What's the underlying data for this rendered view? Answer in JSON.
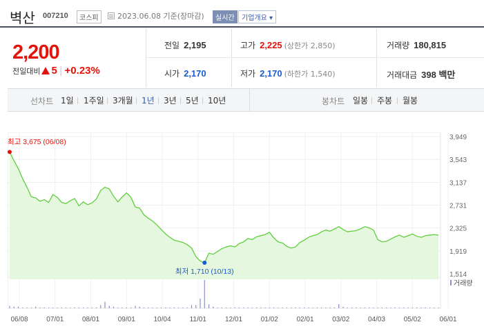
{
  "header": {
    "stock_name": "벽산",
    "stock_code": "007210",
    "market": "코스피",
    "date_text": "2023.06.08 기준(장마감)",
    "realtime_label": "실시간",
    "company_info_label": "기업개요 ▾"
  },
  "quote": {
    "current_price": "2,200",
    "change_label": "전일대비",
    "change_value": "5",
    "change_percent": "+0.23%",
    "prev_close_label": "전일",
    "prev_close": "2,195",
    "high_label": "고가",
    "high": "2,225",
    "upper_limit": "(상한가 2,850)",
    "volume_label": "거래량",
    "volume": "180,815",
    "open_label": "시가",
    "open": "2,170",
    "low_label": "저가",
    "low": "2,170",
    "lower_limit": "(하한가 1,540)",
    "amount_label": "거래대금",
    "amount": "398 백만"
  },
  "tabs": {
    "line_label": "선차트",
    "line_periods": [
      "1일",
      "1주일",
      "3개월",
      "1년",
      "3년",
      "5년",
      "10년"
    ],
    "line_selected": "1년",
    "candle_label": "봉차트",
    "candle_periods": [
      "일봉",
      "주봉",
      "월봉"
    ]
  },
  "chart_data": {
    "type": "area",
    "y_ticks": [
      "3,949",
      "3,543",
      "3,137",
      "2,731",
      "2,325",
      "1,919",
      "1,514"
    ],
    "ylim": [
      1514,
      3949
    ],
    "x_ticks": [
      "06/08",
      "07/01",
      "08/01",
      "09/01",
      "10/04",
      "11/01",
      "12/01",
      "01/02",
      "02/01",
      "03/02",
      "04/03",
      "05/02",
      "06/01"
    ],
    "high_annotation": "최고 3,675 (06/08)",
    "low_annotation": "최저 1,710 (10/13)",
    "volume_legend": "거래량",
    "colors": {
      "line": "#5fcf3c",
      "fill": "#e6f7df",
      "high": "#e3120b",
      "low": "#1a5bd0",
      "volume": "#8c8fc6"
    },
    "x_positions": [
      0,
      1,
      2,
      3,
      4,
      5,
      6,
      7,
      8,
      9,
      10,
      11,
      12,
      13,
      14,
      15,
      16,
      17,
      18,
      19,
      20,
      21,
      22,
      23,
      24,
      25,
      26,
      27,
      28,
      29,
      30,
      31,
      32,
      33,
      34,
      35,
      36,
      37,
      38,
      39,
      40,
      41,
      42,
      43,
      44,
      45,
      46,
      47,
      48,
      49,
      50,
      51,
      52,
      53,
      54,
      55,
      56,
      57,
      58,
      59,
      60,
      61,
      62,
      63,
      64,
      65,
      66,
      67,
      68,
      69,
      70,
      71,
      72,
      73,
      74,
      75,
      76,
      77,
      78,
      79,
      80,
      81,
      82,
      83,
      84,
      85,
      86,
      87,
      88,
      89,
      90,
      91,
      92,
      93,
      94,
      95,
      96,
      97,
      98,
      99
    ],
    "values": [
      3675,
      3520,
      3380,
      3200,
      3050,
      2880,
      2860,
      2800,
      2830,
      2780,
      2920,
      2870,
      2780,
      2760,
      2810,
      2850,
      2720,
      2790,
      2740,
      2770,
      2840,
      2990,
      3050,
      3020,
      2890,
      2790,
      2880,
      2950,
      2870,
      2700,
      2680,
      2560,
      2500,
      2450,
      2380,
      2300,
      2220,
      2160,
      2110,
      2090,
      2070,
      2030,
      1970,
      1820,
      1740,
      1710,
      1880,
      1860,
      1910,
      1960,
      1990,
      2010,
      1990,
      2050,
      2080,
      2140,
      2120,
      2170,
      2190,
      2210,
      2250,
      2150,
      2080,
      2060,
      2000,
      1970,
      1990,
      2070,
      2110,
      2160,
      2190,
      2210,
      2260,
      2290,
      2270,
      2310,
      2350,
      2300,
      2260,
      2270,
      2280,
      2310,
      2350,
      2330,
      2290,
      2120,
      2080,
      2090,
      2130,
      2170,
      2200,
      2160,
      2190,
      2220,
      2180,
      2160,
      2190,
      2200,
      2210,
      2200
    ],
    "volume_values": [
      3,
      2,
      2,
      1,
      1,
      1,
      2,
      1,
      1,
      1,
      1,
      1,
      1,
      1,
      1,
      1,
      1,
      1,
      1,
      1,
      1,
      4,
      8,
      3,
      2,
      1,
      1,
      1,
      1,
      3,
      2,
      1,
      1,
      1,
      1,
      1,
      1,
      1,
      1,
      1,
      1,
      1,
      4,
      4,
      12,
      35,
      5,
      2,
      1,
      1,
      1,
      1,
      1,
      1,
      1,
      1,
      1,
      1,
      1,
      1,
      1,
      1,
      1,
      1,
      1,
      1,
      1,
      1,
      1,
      1,
      1,
      1,
      1,
      1,
      1,
      1,
      5,
      2,
      1,
      1,
      1,
      1,
      1,
      1,
      1,
      1,
      1,
      1,
      1,
      1,
      1,
      1,
      1,
      1,
      1,
      1,
      1,
      1,
      1,
      1
    ]
  }
}
